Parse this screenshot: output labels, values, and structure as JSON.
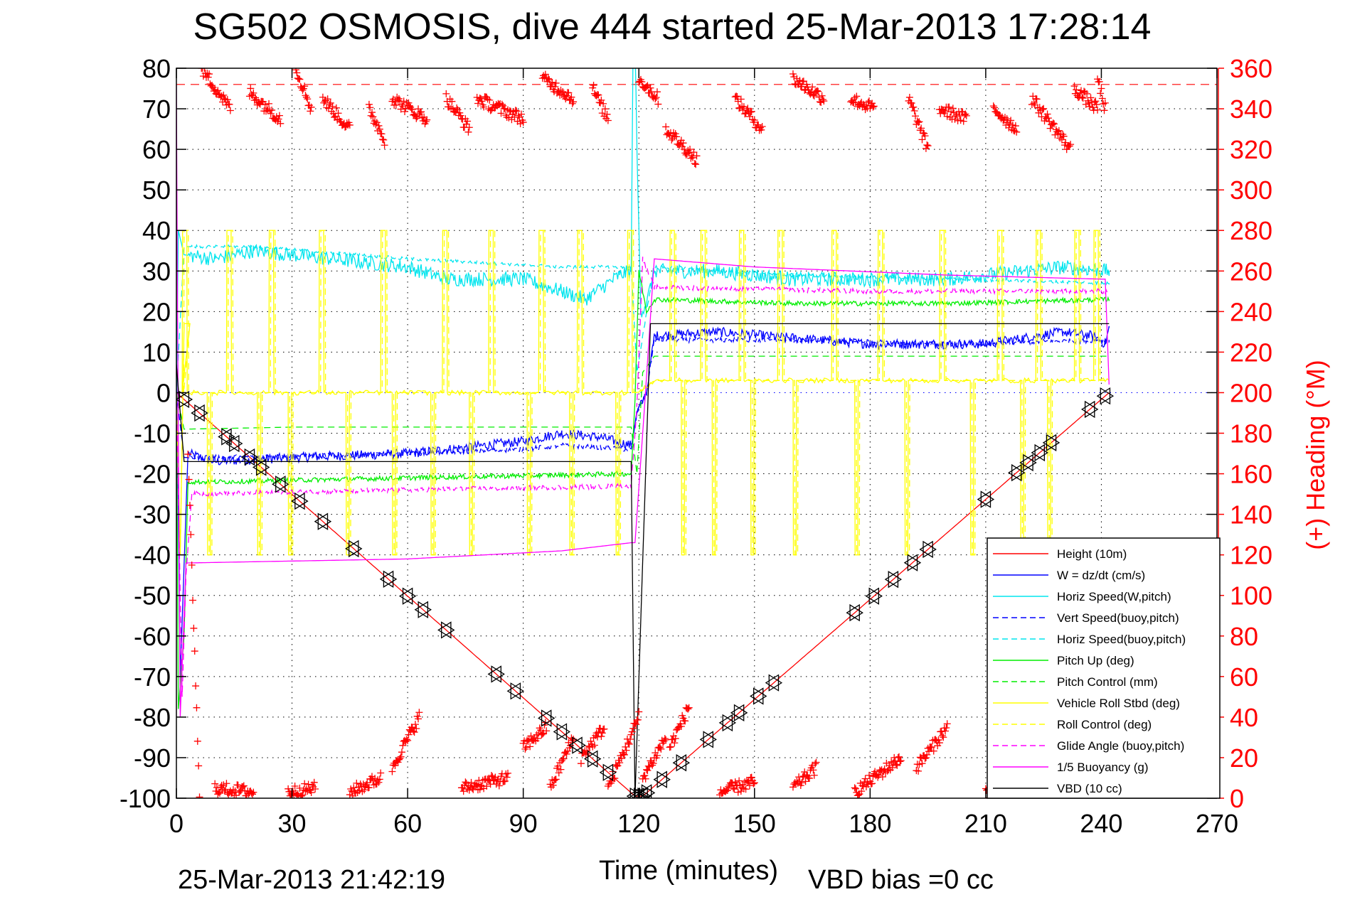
{
  "chart_data": {
    "type": "line",
    "title": "SG502 OSMOSIS, dive 444 started 25-Mar-2013 17:28:14",
    "xlabel": "Time (minutes)",
    "ylabel_left": "",
    "ylabel_right": "(+) Heading (°M)",
    "xlim": [
      0,
      270
    ],
    "ylim": [
      -100,
      80
    ],
    "ylim_right": [
      0,
      360
    ],
    "xticks": [
      0,
      30,
      60,
      90,
      120,
      150,
      180,
      210,
      240,
      270
    ],
    "yticks": [
      80,
      70,
      60,
      50,
      40,
      30,
      20,
      10,
      0,
      -10,
      -20,
      -30,
      -40,
      -50,
      -60,
      -70,
      -80,
      -90,
      -100
    ],
    "yticks_right": [
      360,
      340,
      320,
      300,
      280,
      260,
      240,
      220,
      200,
      180,
      160,
      140,
      120,
      100,
      80,
      60,
      40,
      20,
      0
    ],
    "grid": "dotted",
    "legend_position": "bottom-right",
    "footer_left": "25-Mar-2013 21:42:19",
    "footer_right": "VBD bias =0 cc",
    "reference_lines": [
      {
        "name": "target-heading",
        "axis": "right",
        "value": 352,
        "color": "#ff0000",
        "style": "dashed"
      },
      {
        "name": "w-reference",
        "axis": "left",
        "value": 0,
        "color": "#0000ff",
        "style": "dotted"
      }
    ],
    "series": [
      {
        "name": "Height (10m)",
        "color": "#ff0000",
        "style": "solid",
        "x": [
          0,
          119,
          121,
          242
        ],
        "y": [
          0,
          -99.5,
          -99.5,
          0
        ],
        "noise": 0
      },
      {
        "name": "W = dz/dt (cm/s)",
        "color": "#0000ff",
        "style": "solid",
        "x": [
          0,
          1,
          3,
          10,
          30,
          60,
          90,
          100,
          110,
          118,
          119.5,
          122,
          124,
          140,
          180,
          210,
          230,
          238,
          241,
          242
        ],
        "y": [
          10,
          -70,
          -15,
          -17,
          -16,
          -15,
          -12,
          -10,
          -11,
          -13,
          -5,
          0,
          14,
          15,
          12,
          12,
          15,
          14,
          12,
          16
        ],
        "noise": 1.2
      },
      {
        "name": "Horiz Speed(W,pitch)",
        "color": "#00e5ee",
        "style": "solid",
        "x": [
          0,
          0.5,
          2,
          10,
          20,
          40,
          60,
          70,
          90,
          100,
          106,
          115,
          118,
          118.5,
          119,
          119.5,
          120.5,
          122,
          124,
          140,
          160,
          200,
          230,
          242
        ],
        "y": [
          0,
          40,
          34,
          33,
          35,
          33,
          31,
          28,
          28,
          25,
          23,
          29,
          30,
          85,
          85,
          60,
          20,
          22,
          30,
          30,
          28,
          28,
          31,
          30
        ],
        "noise": 1.8
      },
      {
        "name": "Vert Speed(buoy,pitch)",
        "color": "#0000ff",
        "style": "dashed",
        "x": [
          0,
          2,
          10,
          60,
          90,
          100,
          118,
          119.5,
          122,
          124,
          160,
          200,
          242
        ],
        "y": [
          0,
          -16,
          -16,
          -15,
          -14,
          -13,
          -14,
          -5,
          0,
          13,
          13,
          12,
          13
        ],
        "noise": 0.6
      },
      {
        "name": "Horiz Speed(buoy,pitch)",
        "color": "#00e5ee",
        "style": "dashed",
        "x": [
          0,
          2,
          20,
          60,
          100,
          118,
          119.5,
          122,
          124,
          160,
          200,
          242
        ],
        "y": [
          0,
          36,
          36,
          33,
          31,
          31,
          5,
          20,
          31,
          29,
          28,
          27
        ],
        "noise": 0.4
      },
      {
        "name": "Pitch Up (deg)",
        "color": "#00ee00",
        "style": "solid",
        "x": [
          0,
          0.5,
          2,
          3,
          10,
          60,
          118,
          119,
          120,
          122,
          124,
          160,
          200,
          242
        ],
        "y": [
          0,
          -78,
          -60,
          -22,
          -22,
          -21,
          -20,
          -2,
          30,
          20,
          23,
          22,
          22,
          23
        ],
        "noise": 0.6
      },
      {
        "name": "Pitch Control (mm)",
        "color": "#00ee00",
        "style": "dashed",
        "x": [
          0,
          2,
          30,
          118,
          119.5,
          121,
          124,
          160,
          242
        ],
        "y": [
          0,
          -9,
          -8.5,
          -8.5,
          -20,
          5,
          9,
          9,
          9
        ],
        "noise": 0
      },
      {
        "name": "Vehicle Roll Stbd (deg)",
        "color": "#ffff00",
        "style": "solid",
        "x": [
          0,
          2,
          4,
          5,
          50,
          60,
          110,
          118,
          120,
          124,
          150,
          200,
          238,
          242
        ],
        "y": [
          0,
          -40,
          17,
          0,
          0,
          0,
          0,
          -1,
          0,
          3,
          3,
          3,
          4,
          0
        ],
        "noise": 0.5
      },
      {
        "name": "Roll Control (deg)",
        "color": "#ffff00",
        "style": "dashed",
        "x": [
          0,
          4,
          5,
          242
        ],
        "y": [
          0,
          0,
          0,
          0
        ],
        "noise": 0
      },
      {
        "name": "Glide Angle (buoy,pitch)",
        "color": "#ff00ff",
        "style": "dashed",
        "x": [
          0,
          1.5,
          2.5,
          4,
          60,
          118,
          119.5,
          121,
          124,
          180,
          242
        ],
        "y": [
          0,
          -75,
          -45,
          -25,
          -24,
          -23,
          -3,
          33,
          26,
          25,
          25
        ],
        "noise": 0.6
      },
      {
        "name": "1/5 Buoyancy (g)",
        "color": "#ff00ff",
        "style": "solid",
        "x": [
          0,
          0.3,
          1,
          2.5,
          60,
          100,
          118,
          119,
          121,
          124,
          150,
          200,
          240,
          241,
          242
        ],
        "y": [
          76,
          20,
          -80,
          -42,
          -41,
          -39,
          -37,
          -37,
          -10,
          33,
          31,
          29,
          28,
          28,
          2
        ],
        "noise": 0
      },
      {
        "name": "VBD (10 cc)",
        "color": "#000000",
        "style": "solid",
        "x": [
          0,
          2,
          118,
          119,
          123,
          242
        ],
        "y": [
          7,
          -17,
          -17,
          -100,
          17,
          17
        ],
        "noise": 0
      }
    ],
    "roll_pulses": {
      "name": "Vehicle Roll Stbd / Roll Control pulses",
      "up_times": [
        1.5,
        13,
        24,
        37,
        53,
        69,
        81,
        94,
        104,
        117,
        128,
        136,
        146,
        156,
        170,
        182,
        198,
        213,
        223,
        233,
        238
      ],
      "down_times": [
        8,
        21,
        29,
        44,
        56,
        66,
        76,
        91,
        102,
        114,
        131,
        139,
        149,
        160,
        176,
        189,
        206,
        219,
        226
      ],
      "up_level": 40,
      "down_level": -40
    },
    "heading": {
      "name": "Heading (+)",
      "axis": "right",
      "color": "#ff0000",
      "segments": [
        {
          "t0": 6.5,
          "t1": 14,
          "h0": 360,
          "h1": 340
        },
        {
          "t0": 19,
          "t1": 27,
          "h0": 348,
          "h1": 335
        },
        {
          "t0": 31,
          "t1": 35,
          "h0": 360,
          "h1": 340
        },
        {
          "t0": 38,
          "t1": 45,
          "h0": 345,
          "h1": 330
        },
        {
          "t0": 50,
          "t1": 54,
          "h0": 340,
          "h1": 325
        },
        {
          "t0": 56,
          "t1": 65,
          "h0": 345,
          "h1": 335
        },
        {
          "t0": 70,
          "t1": 76,
          "h0": 345,
          "h1": 330
        },
        {
          "t0": 78,
          "t1": 90,
          "h0": 345,
          "h1": 335
        },
        {
          "t0": 95,
          "t1": 103,
          "h0": 355,
          "h1": 345
        },
        {
          "t0": 108,
          "t1": 112,
          "h0": 350,
          "h1": 335
        },
        {
          "t0": 120,
          "t1": 125,
          "h0": 355,
          "h1": 345
        },
        {
          "t0": 127,
          "t1": 135,
          "h0": 330,
          "h1": 315
        },
        {
          "t0": 145,
          "t1": 152,
          "h0": 345,
          "h1": 330
        },
        {
          "t0": 160,
          "t1": 168,
          "h0": 355,
          "h1": 345
        },
        {
          "t0": 175,
          "t1": 181,
          "h0": 345,
          "h1": 340
        },
        {
          "t0": 190,
          "t1": 195,
          "h0": 345,
          "h1": 320
        },
        {
          "t0": 198,
          "t1": 205,
          "h0": 340,
          "h1": 335
        },
        {
          "t0": 212,
          "t1": 218,
          "h0": 340,
          "h1": 330
        },
        {
          "t0": 222,
          "t1": 232,
          "h0": 345,
          "h1": 320
        },
        {
          "t0": 233,
          "t1": 239,
          "h0": 350,
          "h1": 340
        },
        {
          "t0": 239,
          "t1": 241,
          "h0": 355,
          "h1": 340
        },
        {
          "t0": 3,
          "t1": 6,
          "h0": 170,
          "h1": 0
        },
        {
          "t0": 10,
          "t1": 20,
          "h0": 5,
          "h1": 3
        },
        {
          "t0": 29,
          "t1": 36,
          "h0": 3,
          "h1": 5
        },
        {
          "t0": 45,
          "t1": 53,
          "h0": 3,
          "h1": 10
        },
        {
          "t0": 56,
          "t1": 63,
          "h0": 15,
          "h1": 40
        },
        {
          "t0": 74,
          "t1": 86,
          "h0": 5,
          "h1": 10
        },
        {
          "t0": 90,
          "t1": 96,
          "h0": 25,
          "h1": 35
        },
        {
          "t0": 97,
          "t1": 103,
          "h0": 5,
          "h1": 30
        },
        {
          "t0": 105,
          "t1": 111,
          "h0": 20,
          "h1": 35
        },
        {
          "t0": 112,
          "t1": 120,
          "h0": 5,
          "h1": 40
        },
        {
          "t0": 121,
          "t1": 127,
          "h0": 10,
          "h1": 30
        },
        {
          "t0": 128,
          "t1": 133,
          "h0": 25,
          "h1": 45
        },
        {
          "t0": 141,
          "t1": 150,
          "h0": 3,
          "h1": 8
        },
        {
          "t0": 160,
          "t1": 166,
          "h0": 5,
          "h1": 15
        },
        {
          "t0": 176,
          "t1": 188,
          "h0": 3,
          "h1": 20
        },
        {
          "t0": 192,
          "t1": 200,
          "h0": 15,
          "h1": 35
        },
        {
          "t0": 210,
          "t1": 230,
          "h0": 3,
          "h1": 5
        }
      ]
    },
    "glide_markers": {
      "name": "Glide triangles (down/up)",
      "color": "#000000",
      "times": [
        2,
        6,
        13,
        15,
        19,
        22,
        27,
        32,
        38,
        46,
        55,
        60,
        64,
        70,
        83,
        88,
        96,
        100,
        104,
        108,
        112,
        119,
        120,
        121,
        122,
        126,
        131,
        138,
        143,
        146,
        151,
        155,
        176,
        181,
        186,
        191,
        195,
        210,
        218,
        221,
        224,
        227,
        237,
        241
      ]
    }
  },
  "legend": {
    "items": [
      {
        "label": "Height (10m)",
        "color": "#ff0000",
        "dashed": false
      },
      {
        "label": "W = dz/dt (cm/s)",
        "color": "#0000ff",
        "dashed": false
      },
      {
        "label": "Horiz Speed(W,pitch)",
        "color": "#00e5ee",
        "dashed": false
      },
      {
        "label": "Vert Speed(buoy,pitch)",
        "color": "#0000ff",
        "dashed": true
      },
      {
        "label": "Horiz Speed(buoy,pitch)",
        "color": "#00e5ee",
        "dashed": true
      },
      {
        "label": "Pitch Up (deg)",
        "color": "#00ee00",
        "dashed": false
      },
      {
        "label": "Pitch Control (mm)",
        "color": "#00ee00",
        "dashed": true
      },
      {
        "label": "Vehicle Roll Stbd (deg)",
        "color": "#ffff00",
        "dashed": false
      },
      {
        "label": "Roll Control (deg)",
        "color": "#ffff00",
        "dashed": true
      },
      {
        "label": "Glide Angle (buoy,pitch)",
        "color": "#ff00ff",
        "dashed": true
      },
      {
        "label": "1/5 Buoyancy (g)",
        "color": "#ff00ff",
        "dashed": false
      },
      {
        "label": "VBD (10 cc)",
        "color": "#000000",
        "dashed": false
      }
    ]
  }
}
